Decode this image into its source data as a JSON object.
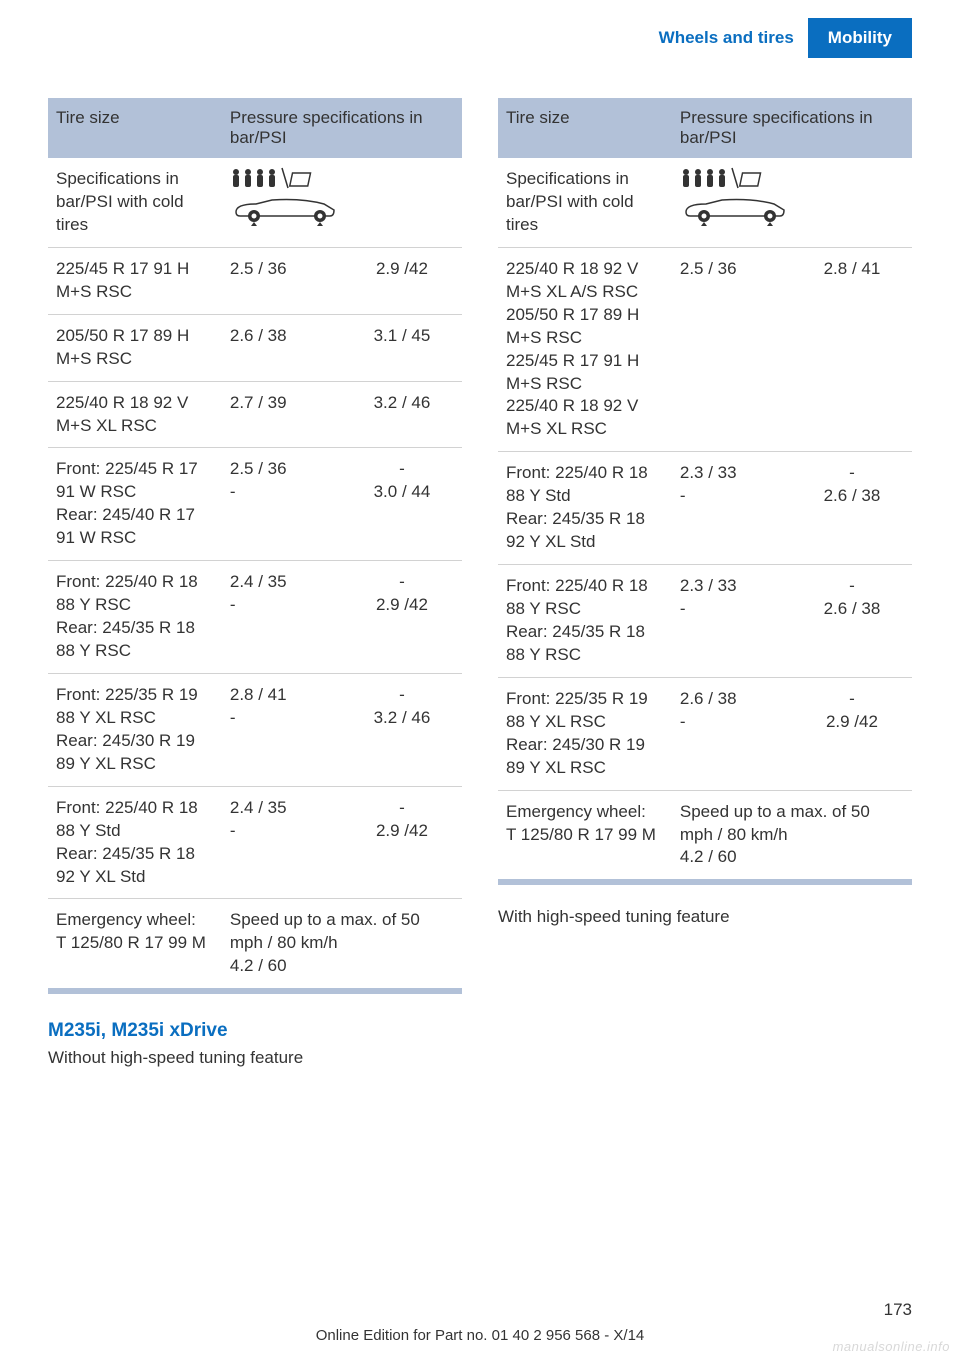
{
  "header": {
    "left": "Wheels and tires",
    "right": "Mobility"
  },
  "colors": {
    "brand": "#0a6ec0",
    "th_bg": "#b2c1d8",
    "border": "#d2d2d2"
  },
  "left_table": {
    "head": {
      "c1": "Tire size",
      "c2": "Pressure specifications in bar/PSI"
    },
    "spec_row": "Specifications in bar/PSI with cold tires",
    "rows": [
      {
        "size": "225/45 R 17 91 H M+S RSC",
        "p1": "2.5 / 36",
        "p2": "2.9 /42"
      },
      {
        "size": "205/50 R 17 89 H M+S RSC",
        "p1": "2.6 / 38",
        "p2": "3.1 / 45"
      },
      {
        "size": "225/40 R 18 92 V M+S XL RSC",
        "p1": "2.7 / 39",
        "p2": "3.2 / 46"
      },
      {
        "size": "Front: 225/45 R 17 91 W RSC\nRear: 245/40 R 17 91 W RSC",
        "p1": "2.5 / 36\n-",
        "p2": "-\n3.0 / 44"
      },
      {
        "size": "Front: 225/40 R 18 88 Y RSC\nRear: 245/35 R 18 88 Y RSC",
        "p1": "2.4 / 35\n-",
        "p2": "-\n2.9 /42"
      },
      {
        "size": "Front: 225/35 R 19 88 Y XL RSC\nRear: 245/30 R 19 89 Y XL RSC",
        "p1": "2.8 / 41\n-",
        "p2": "-\n3.2 / 46"
      },
      {
        "size": "Front: 225/40 R 18 88 Y Std\nRear: 245/35 R 18 92 Y XL Std",
        "p1": "2.4 / 35\n-",
        "p2": "-\n2.9 /42"
      },
      {
        "size": "Emergency wheel:\nT 125/80 R 17 99 M",
        "p1": "Speed up to a max. of 50 mph / 80 km/h\n4.2 / 60",
        "p2": "",
        "merge": true
      }
    ]
  },
  "section": {
    "heading": "M235i, M235i xDrive",
    "sub": "Without high-speed tuning feature"
  },
  "right_table": {
    "head": {
      "c1": "Tire size",
      "c2": "Pressure specifications in bar/PSI"
    },
    "spec_row": "Specifications in bar/PSI with cold tires",
    "rows": [
      {
        "size": "225/40 R 18 92 V M+S XL A/S RSC\n205/50 R 17 89 H M+S RSC\n225/45 R 17 91 H M+S RSC\n225/40 R 18 92 V M+S XL RSC",
        "p1": "2.5 / 36",
        "p2": "2.8 / 41"
      },
      {
        "size": "Front: 225/40 R 18 88 Y Std\nRear: 245/35 R 18 92 Y XL Std",
        "p1": "2.3 / 33\n-",
        "p2": "-\n2.6 / 38"
      },
      {
        "size": "Front: 225/40 R 18 88 Y RSC\nRear: 245/35 R 18 88 Y RSC",
        "p1": "2.3 / 33\n-",
        "p2": "-\n2.6 / 38"
      },
      {
        "size": "Front: 225/35 R 19 88 Y XL RSC\nRear: 245/30 R 19 89 Y XL RSC",
        "p1": "2.6 / 38\n-",
        "p2": "-\n2.9 /42"
      },
      {
        "size": "Emergency wheel:\nT 125/80 R 17 99 M",
        "p1": "Speed up to a max. of 50 mph / 80 km/h\n4.2 / 60",
        "p2": "",
        "merge": true
      }
    ]
  },
  "right_sub": "With high-speed tuning feature",
  "page_num": "173",
  "footer": "Online Edition for Part no. 01 40 2 956 568 - X/14",
  "watermark": "manualsonline.info"
}
